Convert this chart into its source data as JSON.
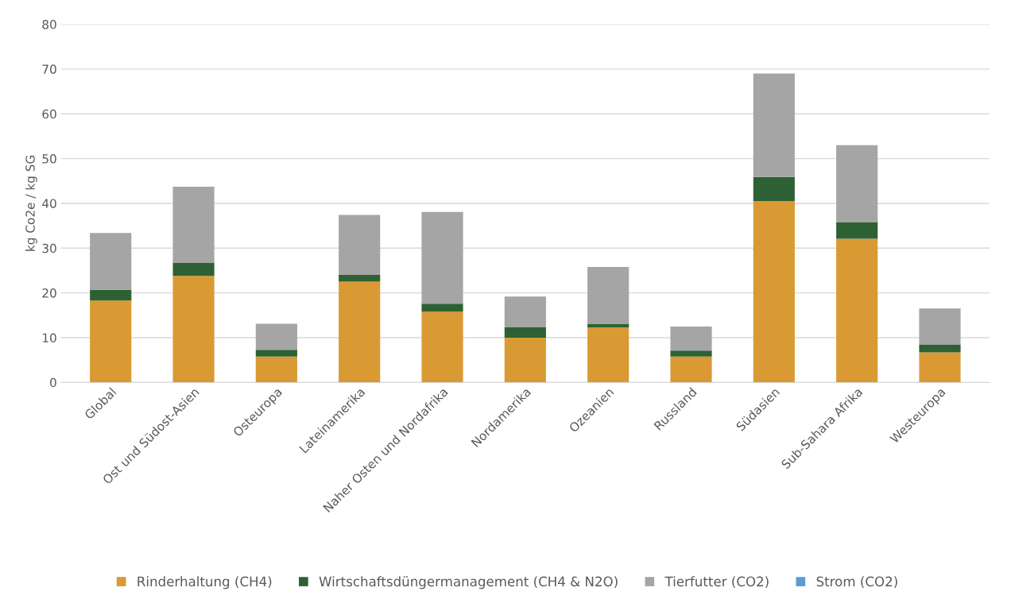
{
  "chart_data": {
    "type": "bar",
    "stacked": true,
    "ylabel": "kg Co2e / kg SG",
    "categories": [
      "Global",
      "Ost und Südost-Asien",
      "Osteuropa",
      "Lateinamerika",
      "Naher Osten und Nordafrika",
      "Nordamerika",
      "Ozeanien",
      "Russland",
      "Südasien",
      "Sub-Sahara Afrika",
      "Westeuropa"
    ],
    "series": [
      {
        "name": "Rinderhaltung (CH4)",
        "color": "#d99a33",
        "values": [
          18.3,
          23.8,
          5.8,
          22.5,
          15.8,
          10.0,
          12.3,
          5.8,
          40.5,
          32.1,
          6.7
        ]
      },
      {
        "name": "Wirtschaftsdüngermanagement (CH4 & N2O)",
        "color": "#2d6133",
        "values": [
          2.4,
          2.9,
          1.5,
          1.5,
          1.8,
          2.3,
          0.8,
          1.3,
          5.4,
          3.7,
          1.8
        ]
      },
      {
        "name": "Tierfutter (CO2)",
        "color": "#a5a5a5",
        "values": [
          12.7,
          17.0,
          5.8,
          13.4,
          20.5,
          6.9,
          12.7,
          5.4,
          23.1,
          17.2,
          8.0
        ]
      },
      {
        "name": "Strom (CO2)",
        "color": "#5b9bd5",
        "values": [
          0,
          0,
          0,
          0,
          0,
          0,
          0,
          0,
          0,
          0,
          0
        ]
      }
    ],
    "ylim": [
      0,
      80
    ],
    "yticks": [
      0,
      10,
      20,
      30,
      40,
      50,
      60,
      70,
      80
    ],
    "grid": "y",
    "legend": "bottom"
  }
}
